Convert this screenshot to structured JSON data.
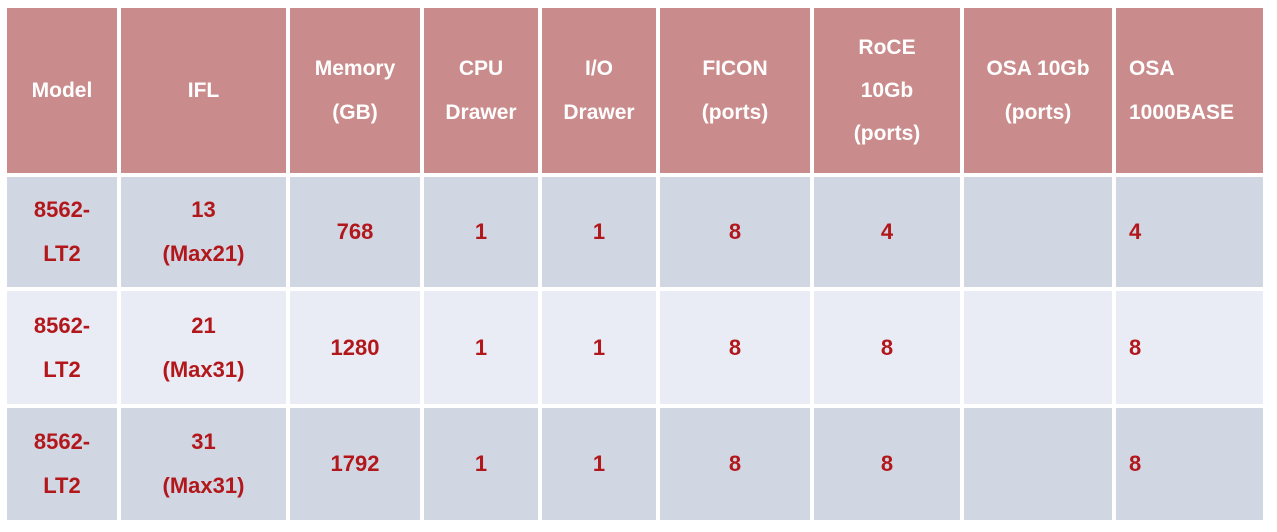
{
  "colors": {
    "header_bg": "#c98b8b",
    "header_text": "#ffffff",
    "row_dark_bg": "#d1d6e3",
    "row_light_bg": "#e9ecf4",
    "value_text": "#b2181b",
    "gutter": "#ffffff"
  },
  "chart_data": {
    "type": "table",
    "columns": [
      "Model",
      "IFL",
      "Memory (GB)",
      "CPU Drawer",
      "I/O Drawer",
      "FICON (ports)",
      "RoCE 10Gb (ports)",
      "OSA 10Gb (ports)",
      "OSA 1000BASE"
    ],
    "rows": [
      [
        "8562-LT2",
        "13 (Max21)",
        "768",
        "1",
        "1",
        "8",
        "4",
        "",
        "4"
      ],
      [
        "8562-LT2",
        "21 (Max31)",
        "1280",
        "1",
        "1",
        "8",
        "8",
        "",
        "8"
      ],
      [
        "8562-LT2",
        "31 (Max31)",
        "1792",
        "1",
        "1",
        "8",
        "8",
        "",
        "8"
      ]
    ]
  },
  "table": {
    "header": [
      {
        "lines": [
          "Model"
        ]
      },
      {
        "lines": [
          "IFL"
        ]
      },
      {
        "lines": [
          "Memory",
          "(GB)"
        ]
      },
      {
        "lines": [
          "CPU",
          "Drawer"
        ]
      },
      {
        "lines": [
          "I/O",
          "Drawer"
        ]
      },
      {
        "lines": [
          "FICON",
          "(ports)"
        ]
      },
      {
        "lines": [
          "RoCE",
          "10Gb",
          "(ports)"
        ]
      },
      {
        "lines": [
          "OSA 10Gb",
          "(ports)"
        ]
      },
      {
        "lines": [
          "OSA",
          "1000BASE"
        ]
      }
    ],
    "rows": [
      {
        "cells": [
          {
            "lines": [
              "8562-",
              "LT2"
            ]
          },
          {
            "lines": [
              "13",
              "(Max21)"
            ]
          },
          {
            "lines": [
              "768"
            ]
          },
          {
            "lines": [
              "1"
            ]
          },
          {
            "lines": [
              "1"
            ]
          },
          {
            "lines": [
              "8"
            ]
          },
          {
            "lines": [
              "4"
            ]
          },
          {
            "lines": []
          },
          {
            "lines": [
              "4"
            ]
          }
        ]
      },
      {
        "cells": [
          {
            "lines": [
              "8562-",
              "LT2"
            ]
          },
          {
            "lines": [
              "21",
              "(Max31)"
            ]
          },
          {
            "lines": [
              "1280"
            ]
          },
          {
            "lines": [
              "1"
            ]
          },
          {
            "lines": [
              "1"
            ]
          },
          {
            "lines": [
              "8"
            ]
          },
          {
            "lines": [
              "8"
            ]
          },
          {
            "lines": []
          },
          {
            "lines": [
              "8"
            ]
          }
        ]
      },
      {
        "cells": [
          {
            "lines": [
              "8562-",
              "LT2"
            ]
          },
          {
            "lines": [
              "31",
              "(Max31)"
            ]
          },
          {
            "lines": [
              "1792"
            ]
          },
          {
            "lines": [
              "1"
            ]
          },
          {
            "lines": [
              "1"
            ]
          },
          {
            "lines": [
              "8"
            ]
          },
          {
            "lines": [
              "8"
            ]
          },
          {
            "lines": []
          },
          {
            "lines": [
              "8"
            ]
          }
        ]
      }
    ]
  }
}
